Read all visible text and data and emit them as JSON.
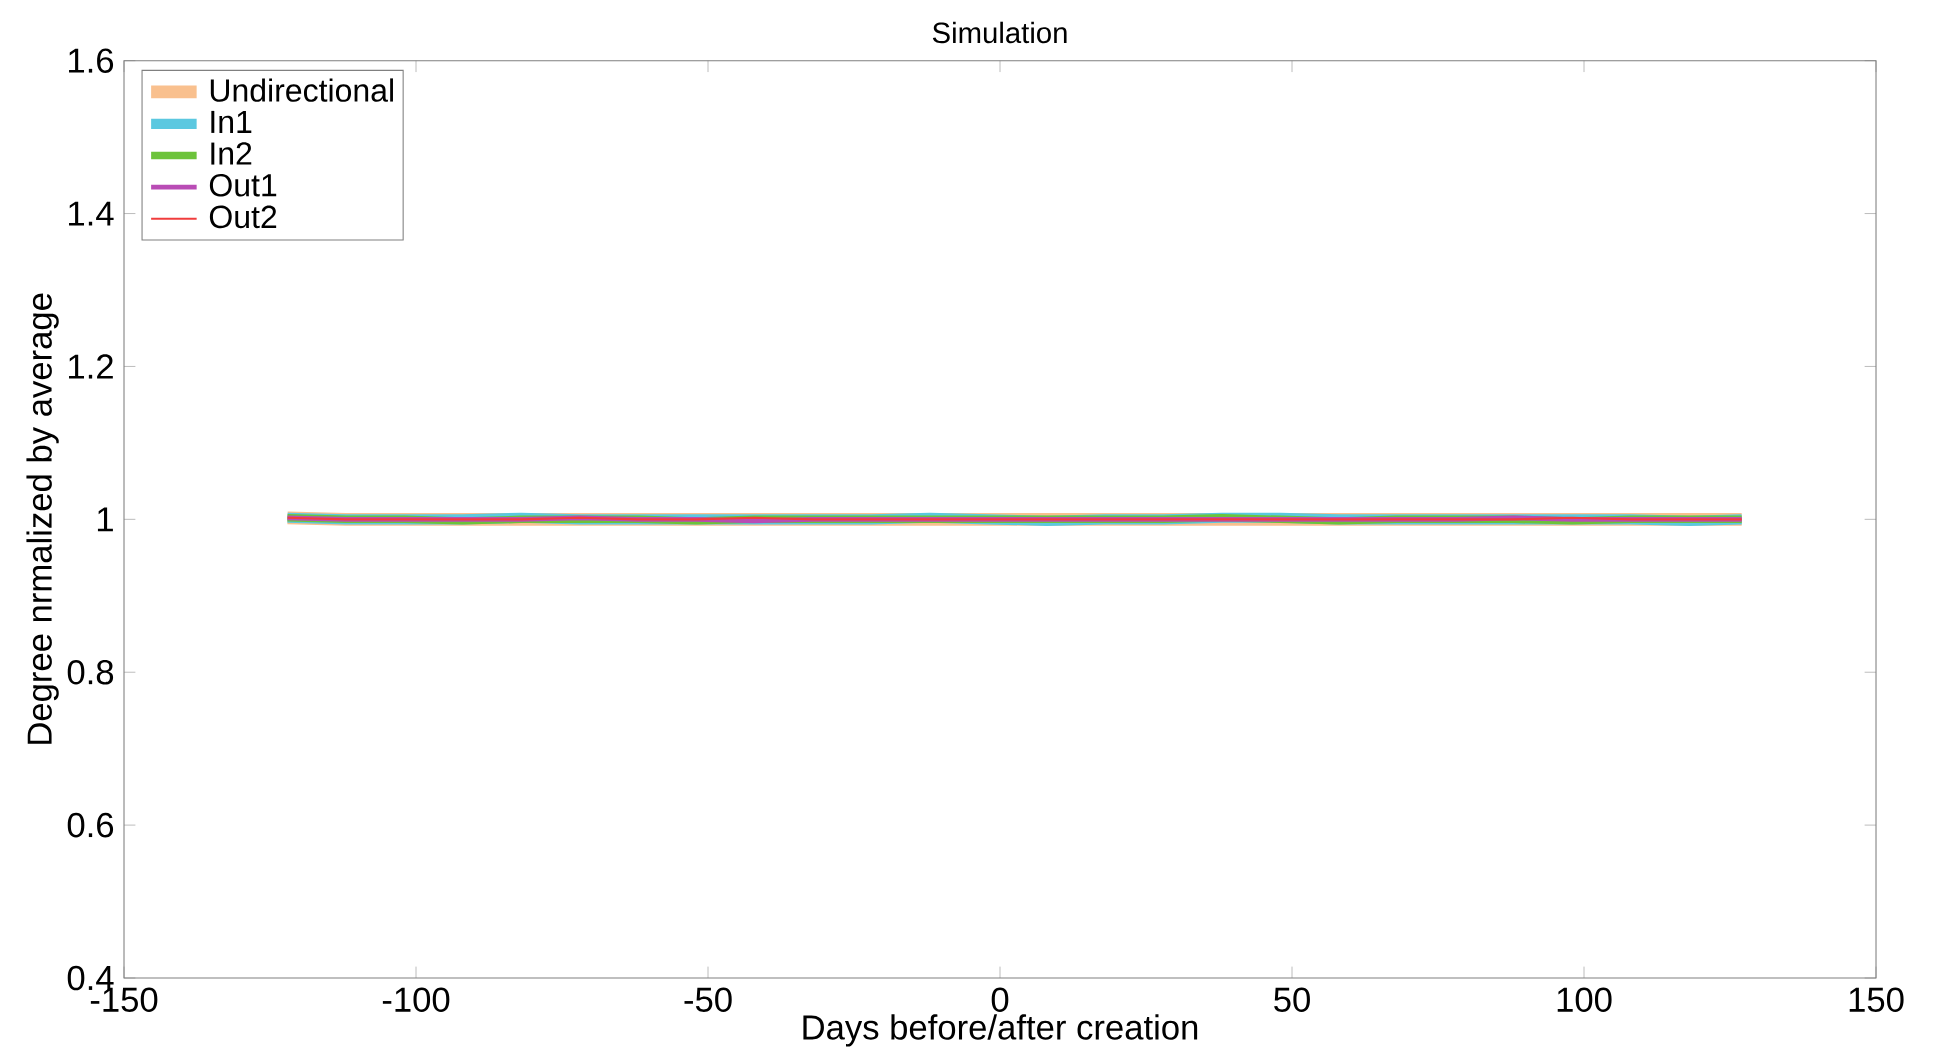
{
  "chart_data": {
    "type": "line",
    "title": "Simulation",
    "xlabel": "Days before/after creation",
    "ylabel": "Degree nrmalized by average",
    "x": [
      -122,
      -112,
      -102,
      -92,
      -82,
      -72,
      -62,
      -52,
      -42,
      -32,
      -22,
      -12,
      -2,
      8,
      18,
      28,
      38,
      48,
      58,
      68,
      78,
      88,
      98,
      108,
      118,
      127
    ],
    "series": [
      {
        "name": "Undirectional",
        "color": "#f9c08e",
        "values": [
          1.002,
          1.0,
          1.0,
          1.0,
          1.0,
          1.0,
          1.0,
          1.0,
          1.0,
          1.0,
          1.0,
          1.0,
          1.0,
          1.0,
          1.0,
          1.0,
          1.0,
          1.0,
          1.0,
          1.0,
          1.0,
          1.0,
          1.0,
          1.0,
          1.0,
          1.0
        ]
      },
      {
        "name": "In1",
        "color": "#5bc8e0",
        "values": [
          1.002,
          1.0,
          1.0,
          1.0,
          1.002,
          1.0,
          1.0,
          1.0,
          1.0,
          1.0,
          1.0,
          1.002,
          1.0,
          0.998,
          1.0,
          1.0,
          1.002,
          1.002,
          1.0,
          1.0,
          1.0,
          1.0,
          1.0,
          1.0,
          0.998,
          1.0
        ]
      },
      {
        "name": "In2",
        "color": "#6cc33a",
        "values": [
          1.002,
          1.0,
          1.0,
          0.998,
          1.0,
          1.0,
          1.0,
          0.998,
          1.0,
          1.0,
          1.0,
          1.0,
          1.0,
          1.0,
          1.0,
          1.0,
          1.002,
          1.0,
          0.998,
          1.0,
          1.0,
          1.0,
          0.998,
          1.0,
          1.0,
          1.0
        ]
      },
      {
        "name": "Out1",
        "color": "#b94cb5",
        "values": [
          1.002,
          1.0,
          1.0,
          1.0,
          1.0,
          1.002,
          1.0,
          1.0,
          0.998,
          1.0,
          1.0,
          1.0,
          1.0,
          1.0,
          1.0,
          1.0,
          1.0,
          1.0,
          1.0,
          1.0,
          1.0,
          1.002,
          1.0,
          1.0,
          1.0,
          1.0
        ]
      },
      {
        "name": "Out2",
        "color": "#f03c3c",
        "values": [
          1.002,
          1.0,
          1.0,
          1.0,
          1.0,
          1.002,
          1.0,
          1.0,
          1.002,
          1.0,
          1.0,
          1.0,
          1.0,
          1.0,
          1.0,
          1.0,
          1.0,
          1.0,
          1.0,
          1.0,
          1.0,
          1.0,
          1.002,
          1.0,
          1.0,
          1.0
        ]
      }
    ],
    "xlim": [
      -150,
      150
    ],
    "xticks": [
      -150,
      -100,
      -50,
      0,
      50,
      100,
      150
    ],
    "ylim": [
      0.4,
      1.6
    ],
    "yticks": [
      0.4,
      0.6,
      0.8,
      1,
      1.2,
      1.4,
      1.6
    ],
    "legend": "top left",
    "grid": false,
    "marker": "none",
    "line_style": "solid"
  }
}
